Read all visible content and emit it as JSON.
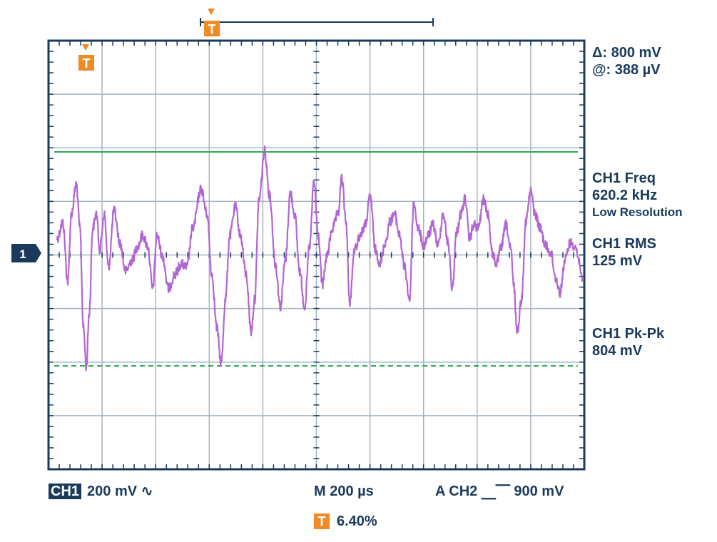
{
  "trigger_marker": "T",
  "channel_marker": "1",
  "measurements": {
    "delta": "Δ: 800 mV",
    "at": "@: 388 µV",
    "freq_label": "CH1 Freq",
    "freq_value": "620.2 kHz",
    "freq_note": "Low Resolution",
    "rms_label": "CH1 RMS",
    "rms_value": "125 mV",
    "pkpk_label": "CH1 Pk-Pk",
    "pkpk_value": "804 mV"
  },
  "status": {
    "channel": "CH1",
    "volts_div": "200 mV ∿",
    "timebase": "M 200 µs",
    "trigger": "A  CH2 ⎽⎺ 900 mV",
    "trigger_pos": "6.40%"
  },
  "colors": {
    "grid": "#a6b4c0",
    "frame": "#1a3a5c",
    "trace": "#b266d4",
    "cursor": "#2eaa57",
    "trigger": "#f08a24"
  }
}
